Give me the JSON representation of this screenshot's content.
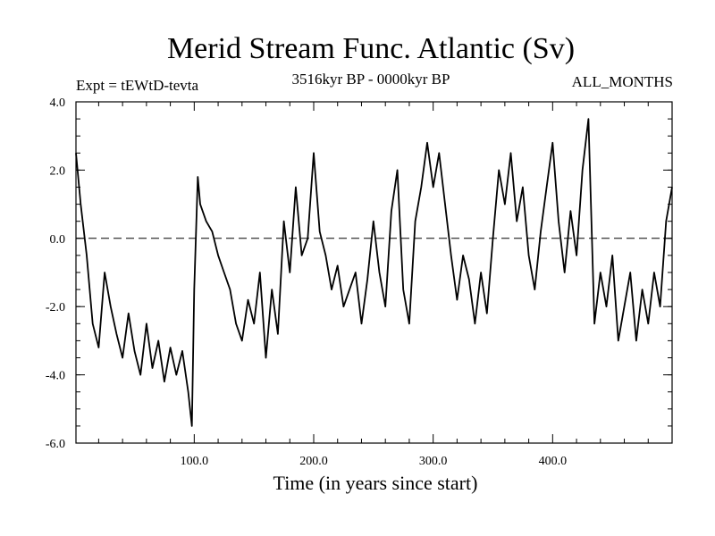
{
  "chart_data": {
    "type": "line",
    "title": "Merid Stream Func. Atlantic (Sv)",
    "subtitle_left": "Expt = tEWtD-tevta",
    "subtitle_center": "3516kyr BP - 0000kyr BP",
    "subtitle_right": "ALL_MONTHS",
    "xlabel": "Time (in years since start)",
    "ylabel": "",
    "xlim": [
      1,
      500
    ],
    "ylim": [
      -6.0,
      4.0
    ],
    "xticks": [
      100.0,
      200.0,
      300.0,
      400.0
    ],
    "xtick_labels": [
      "100.0",
      "200.0",
      "300.0",
      "400.0"
    ],
    "yticks": [
      -6.0,
      -4.0,
      -2.0,
      0.0,
      2.0,
      4.0
    ],
    "ytick_labels": [
      "-6.0",
      "-4.0",
      "-2.0",
      "0.0",
      "2.0",
      "4.0"
    ],
    "reference_line": 0.0,
    "series": [
      {
        "name": "Merid Stream Func. Atlantic",
        "x": [
          1,
          5,
          10,
          15,
          20,
          25,
          30,
          35,
          40,
          45,
          50,
          55,
          60,
          65,
          70,
          75,
          80,
          85,
          90,
          95,
          98,
          100,
          103,
          105,
          110,
          115,
          120,
          125,
          130,
          135,
          140,
          145,
          150,
          155,
          160,
          165,
          170,
          175,
          180,
          185,
          190,
          195,
          200,
          205,
          210,
          215,
          220,
          225,
          230,
          235,
          240,
          245,
          250,
          255,
          260,
          265,
          270,
          275,
          280,
          285,
          290,
          295,
          300,
          305,
          310,
          315,
          320,
          325,
          330,
          335,
          340,
          345,
          350,
          355,
          360,
          365,
          370,
          375,
          380,
          385,
          390,
          395,
          400,
          405,
          410,
          415,
          420,
          425,
          430,
          435,
          440,
          445,
          450,
          455,
          460,
          465,
          470,
          475,
          480,
          485,
          490,
          495,
          500
        ],
        "values": [
          2.5,
          1.0,
          -0.5,
          -2.5,
          -3.2,
          -1.0,
          -2.0,
          -2.8,
          -3.5,
          -2.2,
          -3.3,
          -4.0,
          -2.5,
          -3.8,
          -3.0,
          -4.2,
          -3.2,
          -4.0,
          -3.3,
          -4.5,
          -5.5,
          -1.5,
          1.8,
          1.0,
          0.5,
          0.2,
          -0.5,
          -1.0,
          -1.5,
          -2.5,
          -3.0,
          -1.8,
          -2.5,
          -1.0,
          -3.5,
          -1.5,
          -2.8,
          0.5,
          -1.0,
          1.5,
          -0.5,
          0.0,
          2.5,
          0.2,
          -0.5,
          -1.5,
          -0.8,
          -2.0,
          -1.5,
          -1.0,
          -2.5,
          -1.2,
          0.5,
          -1.0,
          -2.0,
          0.8,
          2.0,
          -1.5,
          -2.5,
          0.5,
          1.5,
          2.8,
          1.5,
          2.5,
          1.0,
          -0.5,
          -1.8,
          -0.5,
          -1.2,
          -2.5,
          -1.0,
          -2.2,
          0.0,
          2.0,
          1.0,
          2.5,
          0.5,
          1.5,
          -0.5,
          -1.5,
          0.2,
          1.5,
          2.8,
          0.5,
          -1.0,
          0.8,
          -0.5,
          2.0,
          3.5,
          -2.5,
          -1.0,
          -2.0,
          -0.5,
          -3.0,
          -2.0,
          -1.0,
          -3.0,
          -1.5,
          -2.5,
          -1.0,
          -2.0,
          0.5,
          1.5
        ]
      }
    ]
  }
}
